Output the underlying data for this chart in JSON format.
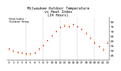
{
  "title": "Milwaukee Outdoor Temperature\nvs Heat Index\n(24 Hours)",
  "title_fontsize": 3.8,
  "x_hours": [
    0,
    1,
    2,
    3,
    4,
    5,
    6,
    7,
    8,
    9,
    10,
    11,
    12,
    13,
    14,
    15,
    16,
    17,
    18,
    19,
    20,
    21,
    22,
    23
  ],
  "temp_values": [
    52,
    50,
    49,
    48,
    47,
    47,
    48,
    52,
    56,
    61,
    66,
    70,
    74,
    76,
    75,
    77,
    75,
    72,
    68,
    63,
    58,
    54,
    51,
    58
  ],
  "heat_values": [
    51,
    49,
    48,
    47,
    46,
    46,
    47,
    51,
    55,
    61,
    66,
    71,
    75,
    77,
    76,
    78,
    76,
    73,
    69,
    64,
    59,
    55,
    52,
    59
  ],
  "temp_color": "#CC0000",
  "heat_color": "#FF8800",
  "bg_color": "#ffffff",
  "grid_color": "#888888",
  "ylim": [
    40,
    85
  ],
  "yticks": [
    45,
    50,
    55,
    60,
    65,
    70,
    75,
    80
  ],
  "tick_fontsize": 3.0,
  "dot_size": 1.2,
  "legend_labels": [
    "Heat Index",
    "Outdoor Temp"
  ],
  "legend_fontsize": 3.0,
  "vgrid_positions": [
    4,
    8,
    12,
    16,
    20
  ]
}
